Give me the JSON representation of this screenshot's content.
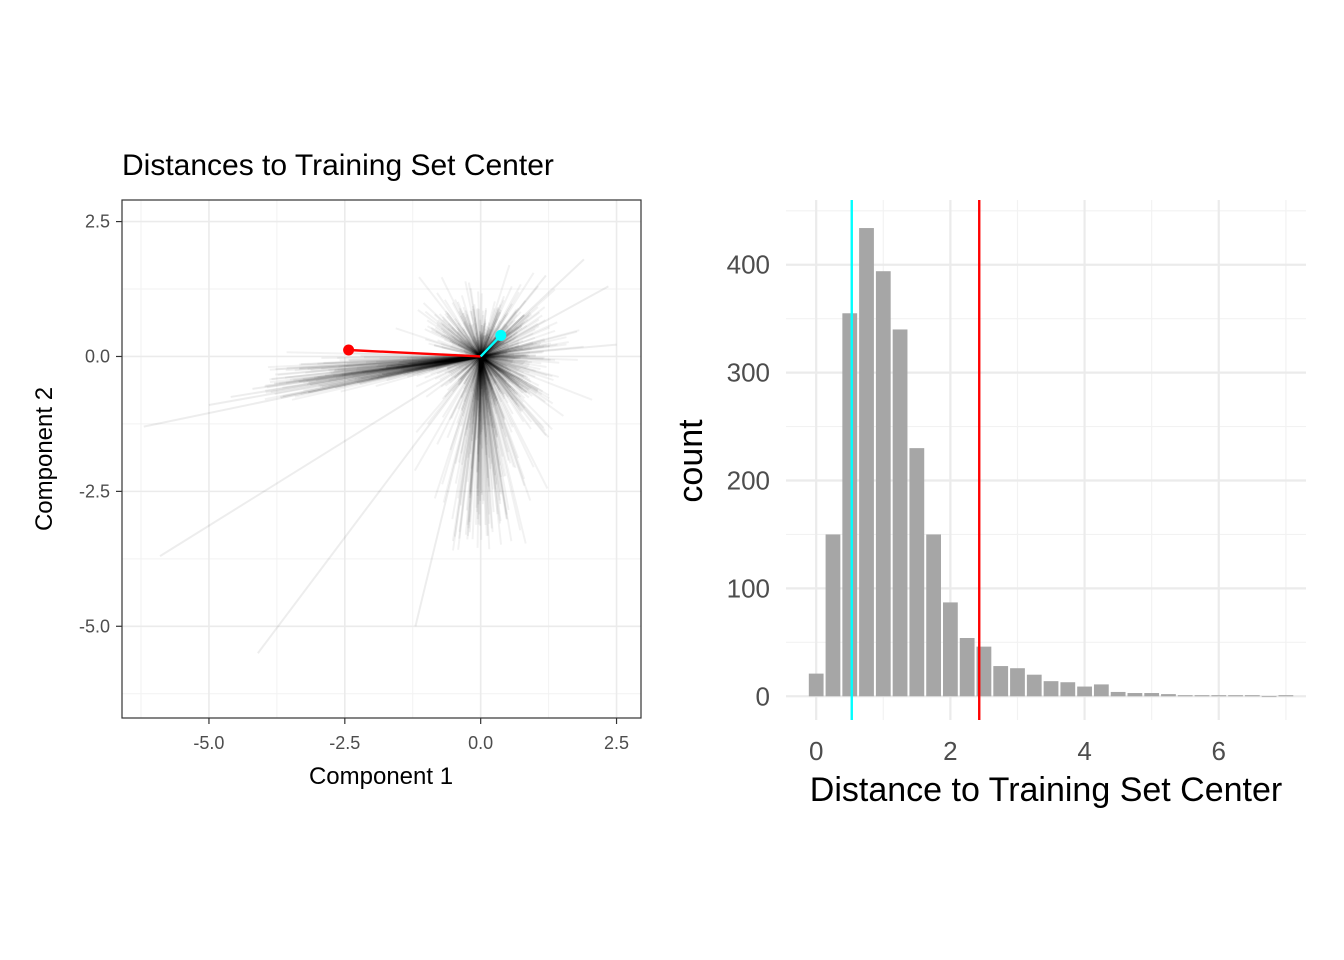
{
  "chart_data": [
    {
      "type": "scatter",
      "title": "Distances to Training Set Center",
      "xlabel": "Component 1",
      "ylabel": "Component 2",
      "xlim": [
        -6.6,
        2.95
      ],
      "ylim": [
        -6.7,
        2.9
      ],
      "x_ticks": [
        "-5.0",
        "-2.5",
        "0.0",
        "2.5"
      ],
      "x_tick_values": [
        -5.0,
        -2.5,
        0.0,
        2.5
      ],
      "y_ticks": [
        "2.5",
        "0.0",
        "-2.5",
        "-5.0"
      ],
      "y_tick_values": [
        2.5,
        0.0,
        -2.5,
        -5.0
      ],
      "center": [
        0.0,
        0.0
      ],
      "highlighted_points": [
        {
          "x": -2.43,
          "y": 0.12,
          "color": "#ff0000"
        },
        {
          "x": 0.37,
          "y": 0.39,
          "color": "#00ffff"
        }
      ],
      "training_segment_endpoints": [
        [
          -6.2,
          -1.3
        ],
        [
          -5.9,
          -3.7
        ],
        [
          -4.1,
          -5.5
        ],
        [
          -1.2,
          -5.0
        ],
        [
          -5.0,
          -0.9
        ],
        [
          -4.6,
          -0.75
        ],
        [
          -4.2,
          -0.6
        ],
        [
          -3.8,
          -0.5
        ],
        [
          2.5,
          0.22
        ],
        [
          1.9,
          1.8
        ],
        [
          2.35,
          1.3
        ],
        [
          1.2,
          1.5
        ]
      ],
      "grid": true
    },
    {
      "type": "bar",
      "xlabel": "Distance to Training Set Center",
      "ylabel": "count",
      "xlim": [
        -0.45,
        7.3
      ],
      "ylim": [
        -22,
        460
      ],
      "x_ticks": [
        "0",
        "2",
        "4",
        "6"
      ],
      "x_tick_values": [
        0,
        2,
        4,
        6
      ],
      "y_ticks": [
        "0",
        "100",
        "200",
        "300",
        "400"
      ],
      "y_tick_values": [
        0,
        100,
        200,
        300,
        400
      ],
      "bin_width": 0.25,
      "bin_centers": [
        0.0,
        0.25,
        0.5,
        0.75,
        1.0,
        1.25,
        1.5,
        1.75,
        2.0,
        2.25,
        2.5,
        2.75,
        3.0,
        3.25,
        3.5,
        3.75,
        4.0,
        4.25,
        4.5,
        4.75,
        5.0,
        5.25,
        5.5,
        5.75,
        6.0,
        6.25,
        6.5,
        6.75,
        7.0
      ],
      "values": [
        21,
        150,
        355,
        434,
        394,
        340,
        230,
        150,
        87,
        54,
        46,
        28,
        26,
        20,
        14,
        13,
        9,
        11,
        4,
        3,
        3,
        2,
        1,
        1,
        1,
        1,
        1,
        0,
        1
      ],
      "vlines": [
        {
          "x": 0.53,
          "color": "#00ffff"
        },
        {
          "x": 2.43,
          "color": "#ff0000"
        }
      ],
      "bar_color": "#a6a6a6",
      "grid": true
    }
  ]
}
